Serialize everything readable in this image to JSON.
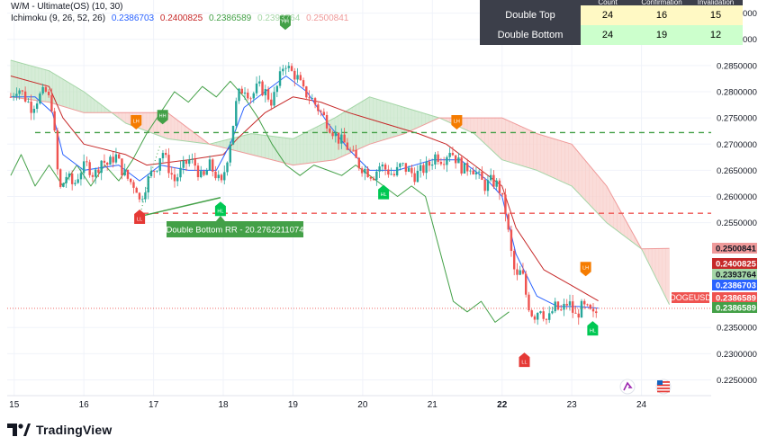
{
  "legend": {
    "line1_name": "W/M - Ultimate(OS) (10, 30)",
    "line2_name": "Ichimoku (9, 26, 52, 26)",
    "line2_values": [
      "0.2386703",
      "0.2400825",
      "0.2386589",
      "0.2393764",
      "0.2500841"
    ],
    "line2_colors": [
      "#2962ff",
      "#c62828",
      "#43a047",
      "#a5d6a7",
      "#ef9a9a"
    ]
  },
  "stats_table": {
    "header": [
      "Count",
      "Confirmation",
      "Invalidation"
    ],
    "rows": [
      {
        "label": "Double Top",
        "values": [
          "24",
          "16",
          "15"
        ]
      },
      {
        "label": "Double Bottom",
        "values": [
          "24",
          "19",
          "12"
        ]
      }
    ]
  },
  "annotation": {
    "text": "Double Bottom RR - 20.2762211074"
  },
  "markers": {
    "lh": "LH",
    "hh": "HH",
    "hl": "HL",
    "ll": "LL"
  },
  "brand": {
    "name": "TradingView"
  },
  "symbol": "DOGEUSD",
  "colors": {
    "up": "#26a69a",
    "down": "#ef5350",
    "tenkan": "#2962ff",
    "kijun": "#c62828",
    "lagging": "#43a047",
    "cloud_bull": "#c8e6c9",
    "cloud_bear": "#f8d0cc",
    "support": "#ef5350",
    "resistance": "#43a047"
  },
  "chart_data": {
    "type": "candlestick",
    "y_range": [
      0.222,
      0.2975
    ],
    "x_range": [
      14.9,
      25.0
    ],
    "y_ticks": [
      "0.2950000",
      "0.2900000",
      "0.2850000",
      "0.2800000",
      "0.2750000",
      "0.2700000",
      "0.2650000",
      "0.2600000",
      "0.2550000",
      "0.2350000",
      "0.2300000",
      "0.2250000"
    ],
    "x_ticks": [
      {
        "x": 15,
        "label": "15",
        "bold": false
      },
      {
        "x": 16,
        "label": "16",
        "bold": false
      },
      {
        "x": 17,
        "label": "17",
        "bold": false
      },
      {
        "x": 18,
        "label": "18",
        "bold": false
      },
      {
        "x": 19,
        "label": "19",
        "bold": false
      },
      {
        "x": 20,
        "label": "20",
        "bold": false
      },
      {
        "x": 21,
        "label": "21",
        "bold": false
      },
      {
        "x": 22,
        "label": "22",
        "bold": true
      },
      {
        "x": 23,
        "label": "23",
        "bold": false
      },
      {
        "x": 24,
        "label": "24",
        "bold": false
      }
    ],
    "price_labels": [
      {
        "value": 0.2500841,
        "text": "0.2500841",
        "color": "#ef9a9a",
        "text_color": "#131722"
      },
      {
        "value": 0.2400825,
        "text": "0.2400825",
        "color": "#c62828",
        "text_color": "#ffffff"
      },
      {
        "value": 0.2393764,
        "text": "0.2393764",
        "color": "#a5d6a7",
        "text_color": "#131722"
      },
      {
        "value": 0.2386703,
        "text": "0.2386703",
        "color": "#2962ff",
        "text_color": "#ffffff"
      },
      {
        "value": 0.2386589,
        "text": "0.2386589",
        "color": "#ef5350",
        "text_color": "#ffffff"
      },
      {
        "value": 0.2386589,
        "text": "0.2386589",
        "color": "#43a047",
        "text_color": "#ffffff"
      }
    ],
    "resistance_level": 0.2722,
    "support_level": 0.2568,
    "current_price": 0.2386589,
    "close_path": [
      [
        14.95,
        0.279
      ],
      [
        15.05,
        0.281
      ],
      [
        15.15,
        0.279
      ],
      [
        15.25,
        0.277
      ],
      [
        15.35,
        0.279
      ],
      [
        15.45,
        0.28
      ],
      [
        15.55,
        0.277
      ],
      [
        15.6,
        0.268
      ],
      [
        15.65,
        0.261
      ],
      [
        15.75,
        0.264
      ],
      [
        15.85,
        0.262
      ],
      [
        15.95,
        0.265
      ],
      [
        16.05,
        0.266
      ],
      [
        16.15,
        0.264
      ],
      [
        16.25,
        0.267
      ],
      [
        16.35,
        0.266
      ],
      [
        16.45,
        0.268
      ],
      [
        16.55,
        0.265
      ],
      [
        16.65,
        0.263
      ],
      [
        16.75,
        0.262
      ],
      [
        16.8,
        0.259
      ],
      [
        16.88,
        0.262
      ],
      [
        16.95,
        0.264
      ],
      [
        17.05,
        0.266
      ],
      [
        17.12,
        0.269
      ],
      [
        17.2,
        0.266
      ],
      [
        17.3,
        0.263
      ],
      [
        17.4,
        0.265
      ],
      [
        17.5,
        0.267
      ],
      [
        17.6,
        0.266
      ],
      [
        17.7,
        0.263
      ],
      [
        17.8,
        0.266
      ],
      [
        17.9,
        0.264
      ],
      [
        17.97,
        0.262
      ],
      [
        18.05,
        0.267
      ],
      [
        18.12,
        0.272
      ],
      [
        18.2,
        0.279
      ],
      [
        18.3,
        0.281
      ],
      [
        18.4,
        0.279
      ],
      [
        18.5,
        0.281
      ],
      [
        18.6,
        0.28
      ],
      [
        18.7,
        0.278
      ],
      [
        18.8,
        0.282
      ],
      [
        18.88,
        0.286
      ],
      [
        18.95,
        0.284
      ],
      [
        19.05,
        0.283
      ],
      [
        19.15,
        0.28
      ],
      [
        19.25,
        0.279
      ],
      [
        19.35,
        0.277
      ],
      [
        19.45,
        0.275
      ],
      [
        19.55,
        0.273
      ],
      [
        19.65,
        0.271
      ],
      [
        19.75,
        0.27
      ],
      [
        19.85,
        0.268
      ],
      [
        19.95,
        0.266
      ],
      [
        20.05,
        0.265
      ],
      [
        20.15,
        0.264
      ],
      [
        20.25,
        0.266
      ],
      [
        20.35,
        0.265
      ],
      [
        20.45,
        0.264
      ],
      [
        20.55,
        0.266
      ],
      [
        20.65,
        0.265
      ],
      [
        20.75,
        0.264
      ],
      [
        20.85,
        0.265
      ],
      [
        20.95,
        0.266
      ],
      [
        21.05,
        0.268
      ],
      [
        21.15,
        0.267
      ],
      [
        21.25,
        0.269
      ],
      [
        21.35,
        0.267
      ],
      [
        21.45,
        0.265
      ],
      [
        21.55,
        0.266
      ],
      [
        21.65,
        0.264
      ],
      [
        21.75,
        0.262
      ],
      [
        21.85,
        0.263
      ],
      [
        21.95,
        0.262
      ],
      [
        22.05,
        0.257
      ],
      [
        22.12,
        0.25
      ],
      [
        22.2,
        0.244
      ],
      [
        22.28,
        0.246
      ],
      [
        22.36,
        0.24
      ],
      [
        22.45,
        0.237
      ],
      [
        22.55,
        0.239
      ],
      [
        22.65,
        0.236
      ],
      [
        22.75,
        0.239
      ],
      [
        22.85,
        0.238
      ],
      [
        22.95,
        0.24
      ],
      [
        23.05,
        0.237
      ],
      [
        23.15,
        0.239
      ],
      [
        23.25,
        0.238
      ],
      [
        23.32,
        0.237
      ],
      [
        23.38,
        0.2387
      ]
    ],
    "tenkan": [
      [
        14.95,
        0.279
      ],
      [
        15.3,
        0.279
      ],
      [
        15.55,
        0.276
      ],
      [
        15.7,
        0.268
      ],
      [
        16.0,
        0.265
      ],
      [
        16.5,
        0.266
      ],
      [
        16.8,
        0.263
      ],
      [
        17.1,
        0.266
      ],
      [
        17.5,
        0.265
      ],
      [
        17.9,
        0.265
      ],
      [
        18.1,
        0.27
      ],
      [
        18.3,
        0.277
      ],
      [
        18.6,
        0.28
      ],
      [
        18.9,
        0.283
      ],
      [
        19.2,
        0.28
      ],
      [
        19.5,
        0.274
      ],
      [
        19.8,
        0.269
      ],
      [
        20.1,
        0.265
      ],
      [
        20.5,
        0.265
      ],
      [
        21.0,
        0.267
      ],
      [
        21.4,
        0.267
      ],
      [
        21.8,
        0.263
      ],
      [
        22.0,
        0.26
      ],
      [
        22.2,
        0.249
      ],
      [
        22.5,
        0.241
      ],
      [
        22.8,
        0.239
      ],
      [
        23.1,
        0.239
      ],
      [
        23.38,
        0.2386703
      ]
    ],
    "kijun": [
      [
        14.95,
        0.283
      ],
      [
        15.5,
        0.281
      ],
      [
        15.7,
        0.275
      ],
      [
        16.0,
        0.27
      ],
      [
        16.6,
        0.268
      ],
      [
        16.9,
        0.266
      ],
      [
        17.5,
        0.267
      ],
      [
        18.0,
        0.268
      ],
      [
        18.2,
        0.271
      ],
      [
        18.6,
        0.276
      ],
      [
        19.0,
        0.279
      ],
      [
        19.4,
        0.278
      ],
      [
        19.8,
        0.276
      ],
      [
        20.3,
        0.274
      ],
      [
        20.8,
        0.272
      ],
      [
        21.2,
        0.27
      ],
      [
        21.6,
        0.266
      ],
      [
        22.0,
        0.262
      ],
      [
        22.2,
        0.254
      ],
      [
        22.6,
        0.246
      ],
      [
        23.0,
        0.243
      ],
      [
        23.38,
        0.2400825
      ]
    ],
    "lagging": [
      [
        14.95,
        0.264
      ],
      [
        15.1,
        0.268
      ],
      [
        15.3,
        0.262
      ],
      [
        15.5,
        0.266
      ],
      [
        15.7,
        0.262
      ],
      [
        15.9,
        0.266
      ],
      [
        16.1,
        0.262
      ],
      [
        16.3,
        0.266
      ],
      [
        16.5,
        0.263
      ],
      [
        16.7,
        0.267
      ],
      [
        16.9,
        0.272
      ],
      [
        17.1,
        0.276
      ],
      [
        17.3,
        0.28
      ],
      [
        17.5,
        0.278
      ],
      [
        17.7,
        0.281
      ],
      [
        17.9,
        0.279
      ],
      [
        18.1,
        0.282
      ],
      [
        18.3,
        0.279
      ],
      [
        18.5,
        0.275
      ],
      [
        18.7,
        0.27
      ],
      [
        18.9,
        0.266
      ],
      [
        19.1,
        0.264
      ],
      [
        19.3,
        0.266
      ],
      [
        19.5,
        0.265
      ],
      [
        19.7,
        0.264
      ],
      [
        19.9,
        0.266
      ],
      [
        20.1,
        0.264
      ],
      [
        20.3,
        0.262
      ],
      [
        20.5,
        0.26
      ],
      [
        20.7,
        0.262
      ],
      [
        20.9,
        0.26
      ],
      [
        21.1,
        0.25
      ],
      [
        21.3,
        0.24
      ],
      [
        21.5,
        0.238
      ],
      [
        21.7,
        0.24
      ],
      [
        21.9,
        0.236
      ],
      [
        22.1,
        0.238
      ]
    ],
    "senkou_a": [
      [
        14.95,
        0.286
      ],
      [
        15.5,
        0.284
      ],
      [
        16.0,
        0.28
      ],
      [
        16.6,
        0.274
      ],
      [
        17.2,
        0.271
      ],
      [
        17.8,
        0.27
      ],
      [
        18.4,
        0.272
      ],
      [
        19.0,
        0.271
      ],
      [
        19.6,
        0.275
      ],
      [
        20.1,
        0.279
      ],
      [
        20.6,
        0.277
      ],
      [
        21.1,
        0.275
      ],
      [
        21.6,
        0.272
      ],
      [
        22.0,
        0.267
      ],
      [
        22.5,
        0.265
      ],
      [
        23.0,
        0.262
      ],
      [
        23.5,
        0.255
      ],
      [
        24.0,
        0.25
      ],
      [
        24.4,
        0.2393764
      ]
    ],
    "senkou_b": [
      [
        14.95,
        0.279
      ],
      [
        15.5,
        0.278
      ],
      [
        16.0,
        0.276
      ],
      [
        16.6,
        0.276
      ],
      [
        17.2,
        0.276
      ],
      [
        17.8,
        0.27
      ],
      [
        18.4,
        0.268
      ],
      [
        19.0,
        0.266
      ],
      [
        19.6,
        0.267
      ],
      [
        20.1,
        0.27
      ],
      [
        20.6,
        0.272
      ],
      [
        21.1,
        0.275
      ],
      [
        21.6,
        0.275
      ],
      [
        22.0,
        0.275
      ],
      [
        22.5,
        0.272
      ],
      [
        23.0,
        0.27
      ],
      [
        23.5,
        0.262
      ],
      [
        24.0,
        0.25
      ],
      [
        24.4,
        0.2500841
      ]
    ],
    "pattern_markers": [
      {
        "x": 16.75,
        "y": 0.2745,
        "type": "lh"
      },
      {
        "x": 17.13,
        "y": 0.2755,
        "type": "hh"
      },
      {
        "x": 18.89,
        "y": 0.2935,
        "type": "hh"
      },
      {
        "x": 21.35,
        "y": 0.2745,
        "type": "lh"
      },
      {
        "x": 23.2,
        "y": 0.2465,
        "type": "lh"
      },
      {
        "x": 16.8,
        "y": 0.2558,
        "type": "ll"
      },
      {
        "x": 17.96,
        "y": 0.2573,
        "type": "hl"
      },
      {
        "x": 20.3,
        "y": 0.2605,
        "type": "hl"
      },
      {
        "x": 22.32,
        "y": 0.2285,
        "type": "ll"
      },
      {
        "x": 23.3,
        "y": 0.2345,
        "type": "hl"
      }
    ]
  }
}
